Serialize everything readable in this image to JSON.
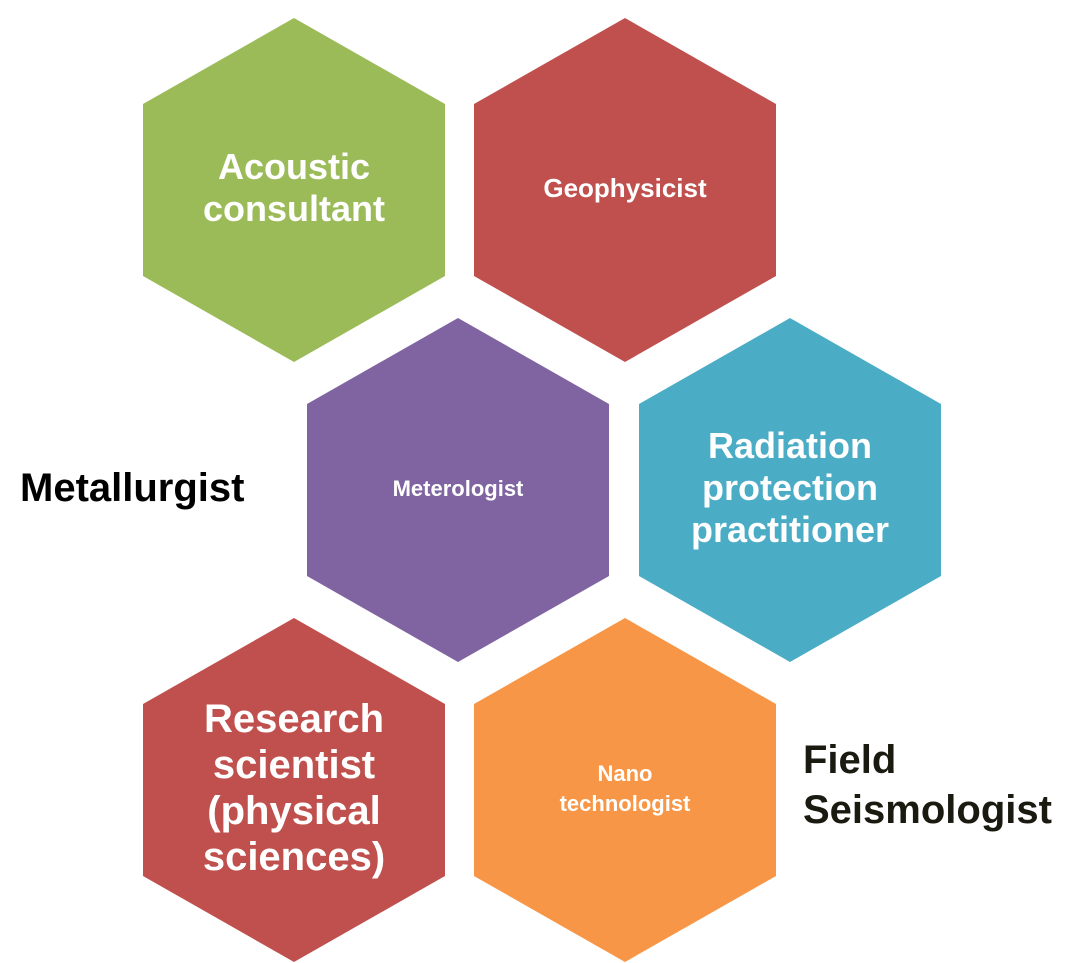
{
  "nodes": [
    {
      "lines": [
        "Acoustic",
        "consultant"
      ],
      "color": "#9bbb59"
    },
    {
      "lines": [
        "Geophysicist"
      ],
      "color": "#c0504d"
    },
    {
      "lines": [
        "Meterologist"
      ],
      "color": "#8064a2"
    },
    {
      "lines": [
        "Radiation",
        "protection",
        "practitioner"
      ],
      "color": "#4bacc6"
    },
    {
      "lines": [
        "Research",
        "scientist",
        "(physical",
        "sciences)"
      ],
      "color": "#c0504d"
    },
    {
      "lines": [
        "Nano",
        "technologist"
      ],
      "color": "#f79646"
    }
  ],
  "side_labels": [
    {
      "lines": [
        "Metallurgist"
      ]
    },
    {
      "lines": [
        "Field",
        "Seismologist"
      ]
    }
  ]
}
